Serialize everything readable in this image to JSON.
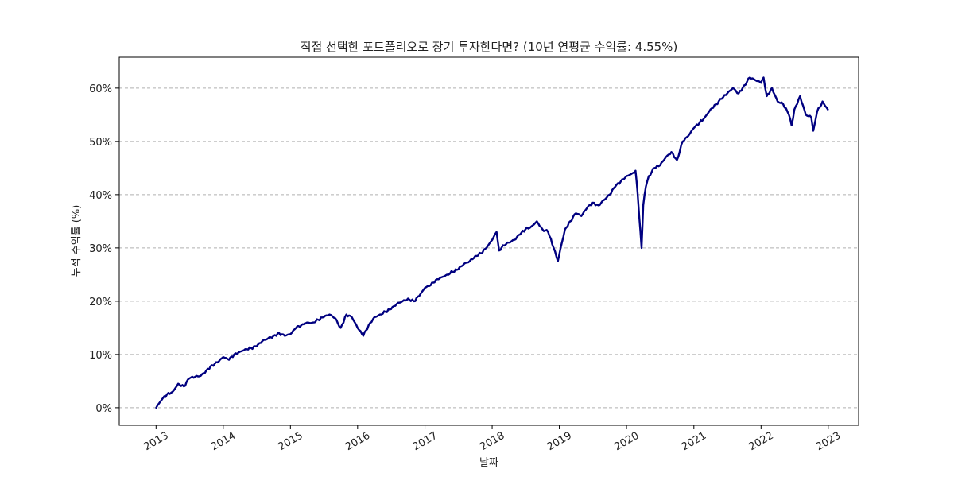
{
  "chart_data": {
    "type": "line",
    "title": "직접 선택한 포트폴리오로 장기 투자한다면? (10년 연평균 수익률: 4.55%)",
    "xlabel": "날짜",
    "ylabel": "누적 수익률 (%)",
    "x_tick_labels": [
      "2013",
      "2014",
      "2015",
      "2016",
      "2017",
      "2018",
      "2019",
      "2020",
      "2021",
      "2022",
      "2023"
    ],
    "y_ticks": [
      0,
      10,
      20,
      30,
      40,
      50,
      60
    ],
    "y_tick_labels": [
      "0%",
      "10%",
      "20%",
      "30%",
      "40%",
      "50%",
      "60%"
    ],
    "xlim": [
      "2012-06-15",
      "2023-06-15"
    ],
    "ylim": [
      -3.3,
      65.8
    ],
    "grid": "horizontal dashed",
    "colors": {
      "line": "#000080",
      "grid": "#b0b0b0"
    },
    "series": [
      {
        "x": [
          "2013-01-02",
          "2013-02-01",
          "2013-03-01",
          "2013-04-01",
          "2013-05-01",
          "2013-06-01",
          "2013-07-01",
          "2013-08-01",
          "2013-09-01",
          "2013-10-01",
          "2013-11-01",
          "2013-12-01",
          "2014-01-01",
          "2014-02-01",
          "2014-03-01",
          "2014-04-01",
          "2014-05-01",
          "2014-06-01",
          "2014-07-01",
          "2014-08-01",
          "2014-09-01",
          "2014-10-01",
          "2014-11-01",
          "2014-12-01",
          "2015-01-01",
          "2015-02-01",
          "2015-03-01",
          "2015-04-01",
          "2015-05-01",
          "2015-06-01",
          "2015-07-01",
          "2015-08-01",
          "2015-09-01",
          "2015-10-01",
          "2015-11-01",
          "2015-12-01",
          "2016-01-01",
          "2016-02-01",
          "2016-03-01",
          "2016-04-01",
          "2016-05-01",
          "2016-06-01",
          "2016-07-01",
          "2016-08-01",
          "2016-09-01",
          "2016-10-01",
          "2016-11-01",
          "2016-12-01",
          "2017-01-01",
          "2017-02-01",
          "2017-03-01",
          "2017-04-01",
          "2017-05-01",
          "2017-06-01",
          "2017-07-01",
          "2017-08-01",
          "2017-09-01",
          "2017-10-01",
          "2017-11-01",
          "2017-12-01",
          "2018-01-01",
          "2018-01-25",
          "2018-02-08",
          "2018-03-01",
          "2018-04-01",
          "2018-05-01",
          "2018-06-01",
          "2018-07-01",
          "2018-08-01",
          "2018-09-01",
          "2018-10-01",
          "2018-11-01",
          "2018-12-01",
          "2018-12-24",
          "2019-01-15",
          "2019-02-01",
          "2019-03-01",
          "2019-04-01",
          "2019-05-01",
          "2019-06-01",
          "2019-07-01",
          "2019-08-01",
          "2019-09-01",
          "2019-10-01",
          "2019-11-01",
          "2019-12-01",
          "2020-01-01",
          "2020-02-01",
          "2020-02-19",
          "2020-03-01",
          "2020-03-10",
          "2020-03-23",
          "2020-04-01",
          "2020-04-15",
          "2020-05-01",
          "2020-06-01",
          "2020-07-01",
          "2020-08-01",
          "2020-09-01",
          "2020-10-01",
          "2020-11-01",
          "2020-12-01",
          "2021-01-01",
          "2021-02-01",
          "2021-03-01",
          "2021-04-01",
          "2021-05-01",
          "2021-06-01",
          "2021-07-01",
          "2021-08-01",
          "2021-09-01",
          "2021-10-01",
          "2021-11-01",
          "2021-12-01",
          "2022-01-01",
          "2022-01-15",
          "2022-02-01",
          "2022-03-01",
          "2022-04-01",
          "2022-05-01",
          "2022-06-01",
          "2022-06-16",
          "2022-07-01",
          "2022-08-01",
          "2022-09-01",
          "2022-10-01",
          "2022-10-12",
          "2022-11-01",
          "2022-12-01",
          "2022-12-30"
        ],
        "values": [
          0.0,
          1.5,
          2.5,
          3.0,
          4.5,
          4.0,
          5.5,
          5.8,
          6.0,
          7.0,
          8.0,
          8.5,
          9.5,
          9.0,
          10.0,
          10.5,
          11.0,
          11.2,
          11.5,
          12.5,
          13.0,
          13.5,
          14.0,
          13.5,
          13.8,
          15.0,
          15.5,
          16.0,
          16.0,
          16.5,
          17.0,
          17.5,
          16.8,
          15.0,
          17.5,
          17.0,
          15.0,
          13.5,
          15.5,
          17.0,
          17.5,
          18.0,
          18.5,
          19.5,
          20.0,
          20.5,
          20.0,
          21.0,
          22.5,
          23.0,
          24.0,
          24.5,
          25.0,
          25.5,
          26.0,
          27.0,
          27.5,
          28.5,
          29.0,
          30.0,
          31.5,
          33.0,
          29.5,
          30.5,
          31.0,
          31.5,
          32.5,
          33.5,
          34.0,
          35.0,
          33.5,
          33.0,
          30.0,
          27.5,
          31.0,
          33.5,
          35.0,
          36.5,
          36.0,
          37.5,
          38.5,
          38.0,
          39.0,
          40.0,
          41.5,
          42.5,
          43.5,
          44.0,
          44.5,
          40.5,
          36.0,
          30.0,
          38.0,
          41.5,
          43.5,
          45.0,
          45.5,
          47.0,
          48.0,
          46.5,
          50.0,
          51.0,
          52.5,
          53.5,
          54.5,
          56.0,
          57.0,
          58.0,
          59.0,
          60.0,
          59.0,
          60.5,
          62.0,
          61.5,
          61.0,
          62.0,
          58.5,
          60.0,
          57.5,
          57.0,
          55.0,
          53.0,
          56.0,
          58.5,
          55.0,
          54.5,
          52.0,
          55.5,
          57.5,
          56.0
        ]
      }
    ]
  }
}
